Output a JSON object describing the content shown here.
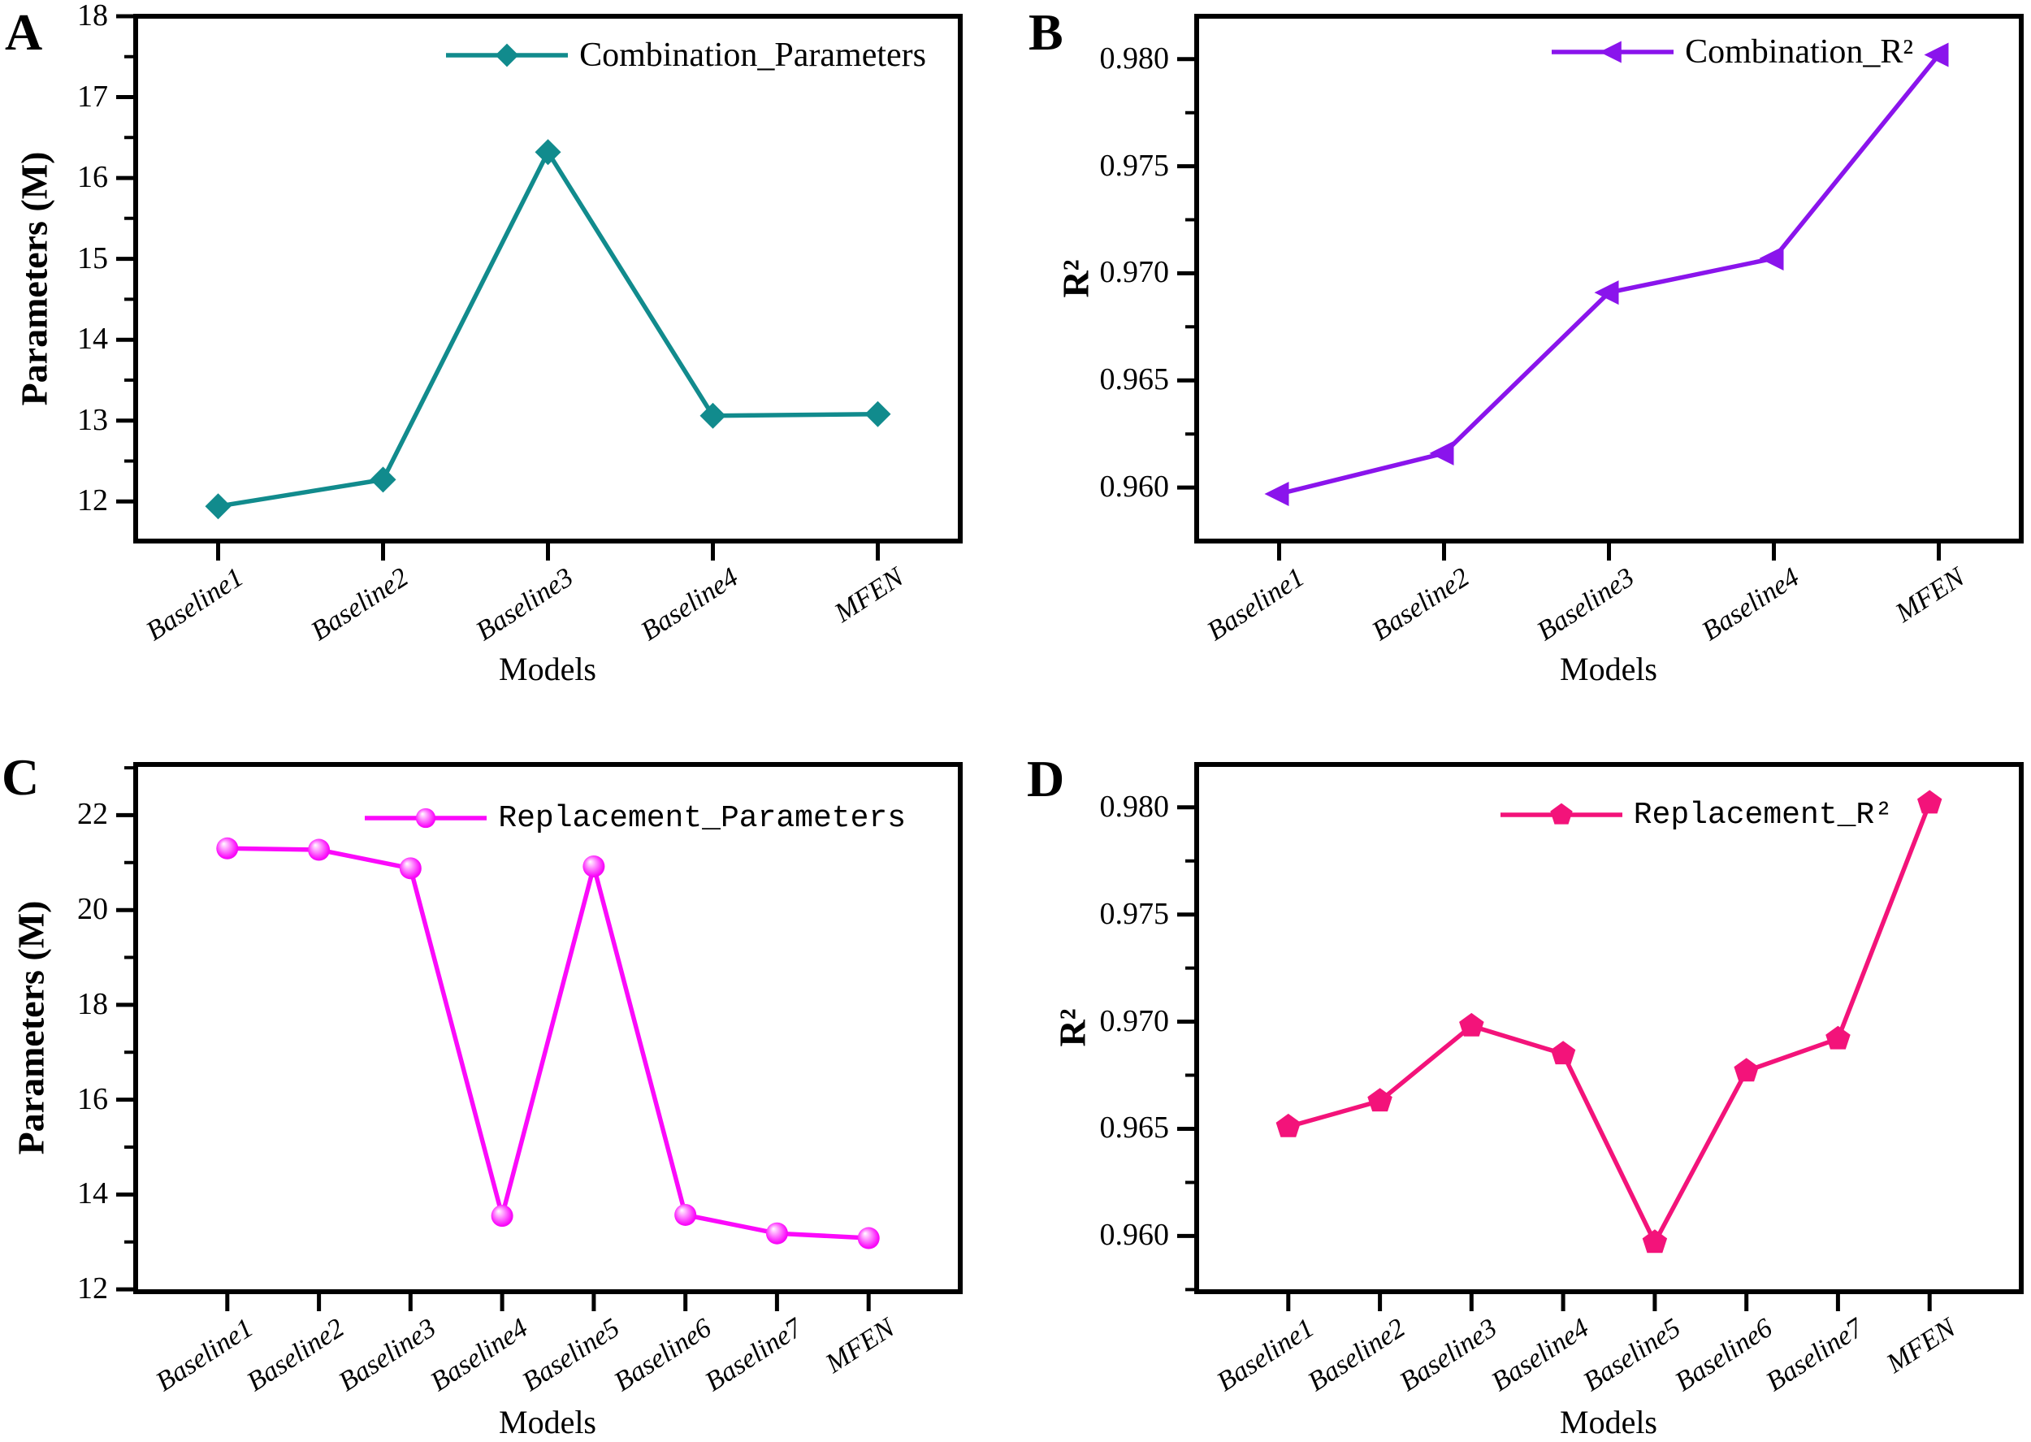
{
  "figure": {
    "background_color": "#ffffff",
    "axis_color": "#000000",
    "panel_letters": [
      "A",
      "B",
      "C",
      "D"
    ]
  },
  "chart_data": [
    {
      "type": "line",
      "panel_label": "A",
      "legend": "Combination_Parameters",
      "xlabel": "Models",
      "ylabel": "Parameters (M)",
      "categories": [
        "Baseline1",
        "Baseline2",
        "Baseline3",
        "Baseline4",
        "MFEN"
      ],
      "values": [
        11.94,
        12.27,
        16.32,
        13.06,
        13.08
      ],
      "ylim": [
        11.51,
        18.0
      ],
      "ytick_values": [
        12,
        13,
        14,
        15,
        16,
        17,
        18
      ],
      "ytick_labels": [
        "12",
        "13",
        "14",
        "15",
        "16",
        "17",
        "18"
      ],
      "minor_tick_step": 0.5,
      "x_spacing": "half",
      "color": "#118b8d",
      "marker": "diamond",
      "grid": false,
      "legend_position": "top-right-inside"
    },
    {
      "type": "line",
      "panel_label": "B",
      "legend": "Combination_R²",
      "xlabel": "Models",
      "ylabel": "R²",
      "categories": [
        "Baseline1",
        "Baseline2",
        "Baseline3",
        "Baseline4",
        "MFEN"
      ],
      "values": [
        0.9597,
        0.9616,
        0.9691,
        0.9707,
        0.9802
      ],
      "ylim": [
        0.9575,
        0.982
      ],
      "ytick_values": [
        0.96,
        0.965,
        0.97,
        0.975,
        0.98
      ],
      "ytick_labels": [
        "0.960",
        "0.965",
        "0.970",
        "0.975",
        "0.980"
      ],
      "minor_tick_step": 0.0025,
      "x_spacing": "half",
      "color": "#8a14ec",
      "marker": "triangle-left",
      "grid": false,
      "legend_position": "top-right-inside"
    },
    {
      "type": "line",
      "panel_label": "C",
      "legend": "Replacement_Parameters",
      "xlabel": "Models",
      "ylabel": "Parameters (M)",
      "categories": [
        "Baseline1",
        "Baseline2",
        "Baseline3",
        "Baseline4",
        "Baseline5",
        "Baseline6",
        "Baseline7",
        "MFEN"
      ],
      "values": [
        21.3,
        21.27,
        20.88,
        13.55,
        20.92,
        13.57,
        13.18,
        13.08
      ],
      "ylim": [
        11.95,
        23.07
      ],
      "ytick_values": [
        12,
        14,
        16,
        18,
        20,
        22
      ],
      "ytick_labels": [
        "12",
        "14",
        "16",
        "18",
        "20",
        "22"
      ],
      "minor_tick_step": 1,
      "x_spacing": "full",
      "color": "#fb0afb",
      "marker": "sphere",
      "grid": false,
      "legend_position": "top-right-inside"
    },
    {
      "type": "line",
      "panel_label": "D",
      "legend": "Replacement_R²",
      "xlabel": "Models",
      "ylabel": "R²",
      "categories": [
        "Baseline1",
        "Baseline2",
        "Baseline3",
        "Baseline4",
        "Baseline5",
        "Baseline6",
        "Baseline7",
        "MFEN"
      ],
      "values": [
        0.9651,
        0.9663,
        0.9698,
        0.9685,
        0.9597,
        0.9677,
        0.9692,
        0.9802
      ],
      "ylim": [
        0.9574,
        0.982
      ],
      "ytick_values": [
        0.96,
        0.965,
        0.97,
        0.975,
        0.98
      ],
      "ytick_labels": [
        "0.960",
        "0.965",
        "0.970",
        "0.975",
        "0.980"
      ],
      "minor_tick_step": 0.0025,
      "x_spacing": "full",
      "color": "#f3137a",
      "marker": "pentagon",
      "grid": false,
      "legend_position": "top-right-inside"
    }
  ]
}
